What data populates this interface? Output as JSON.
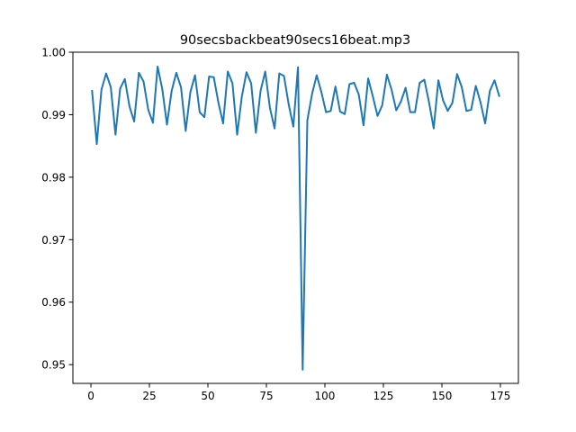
{
  "chart_data": {
    "type": "line",
    "title": "90secsbackbeat90secs16beat.mp3",
    "xlabel": "",
    "ylabel": "",
    "xlim": [
      -7.7,
      182.7
    ],
    "ylim": [
      0.947,
      1.0
    ],
    "x_ticks": [
      0,
      25,
      50,
      75,
      100,
      125,
      150,
      175
    ],
    "x_tick_labels": [
      "0",
      "25",
      "50",
      "75",
      "100",
      "125",
      "150",
      "175"
    ],
    "y_ticks": [
      0.95,
      0.96,
      0.97,
      0.98,
      0.99,
      1.0
    ],
    "y_tick_labels": [
      "0.95",
      "0.96",
      "0.97",
      "0.98",
      "0.99",
      "1.00"
    ],
    "grid": false,
    "line_color": "#1f77b4",
    "series": [
      {
        "x": [
          0.5,
          2.5,
          4.5,
          6.5,
          8.5,
          10.5,
          12.5,
          14.5,
          16.5,
          18.5,
          20.5,
          22.5,
          24.5,
          26.5,
          28.5,
          30.5,
          32.5,
          34.5,
          36.5,
          38.5,
          40.5,
          42.5,
          44.5,
          46.5,
          48.5,
          50.5,
          52.5,
          54.5,
          56.5,
          58.5,
          60.5,
          62.5,
          64.5,
          66.5,
          68.5,
          70.5,
          72.5,
          74.5,
          76.5,
          78.5,
          80.5,
          82.5,
          84.5,
          86.5,
          88.5,
          90.5,
          92.5,
          94.5,
          96.5,
          98.5,
          100.5,
          102.5,
          104.5,
          106.5,
          108.5,
          110.5,
          112.5,
          114.5,
          116.5,
          118.5,
          120.5,
          122.5,
          124.5,
          126.5,
          128.5,
          130.5,
          132.5,
          134.5,
          136.5,
          138.5,
          140.5,
          142.5,
          144.5,
          146.5,
          148.5,
          150.5,
          152.5,
          154.5,
          156.5,
          158.5,
          160.5,
          162.5,
          164.5,
          166.5,
          168.5,
          170.5,
          172.5,
          174.5
        ],
        "values": [
          0.9938,
          0.9853,
          0.994,
          0.9966,
          0.9944,
          0.9868,
          0.9942,
          0.9957,
          0.9913,
          0.9889,
          0.9967,
          0.9953,
          0.9908,
          0.9887,
          0.9977,
          0.9941,
          0.9884,
          0.9938,
          0.9967,
          0.9944,
          0.9874,
          0.9936,
          0.9963,
          0.9904,
          0.9896,
          0.9961,
          0.996,
          0.9919,
          0.9886,
          0.9969,
          0.995,
          0.9868,
          0.9929,
          0.9968,
          0.995,
          0.9871,
          0.9938,
          0.9969,
          0.9911,
          0.9878,
          0.9966,
          0.9962,
          0.9917,
          0.9881,
          0.9976,
          0.9492,
          0.9891,
          0.9933,
          0.9963,
          0.9936,
          0.9904,
          0.9906,
          0.9945,
          0.9905,
          0.9901,
          0.9949,
          0.9951,
          0.9932,
          0.9883,
          0.9958,
          0.9929,
          0.9898,
          0.9915,
          0.9964,
          0.994,
          0.9907,
          0.9921,
          0.9943,
          0.9904,
          0.9904,
          0.9951,
          0.9956,
          0.992,
          0.9878,
          0.9955,
          0.9923,
          0.9906,
          0.9919,
          0.9965,
          0.9944,
          0.9906,
          0.9908,
          0.9946,
          0.992,
          0.9886,
          0.9938,
          0.9955,
          0.993
        ]
      }
    ]
  }
}
